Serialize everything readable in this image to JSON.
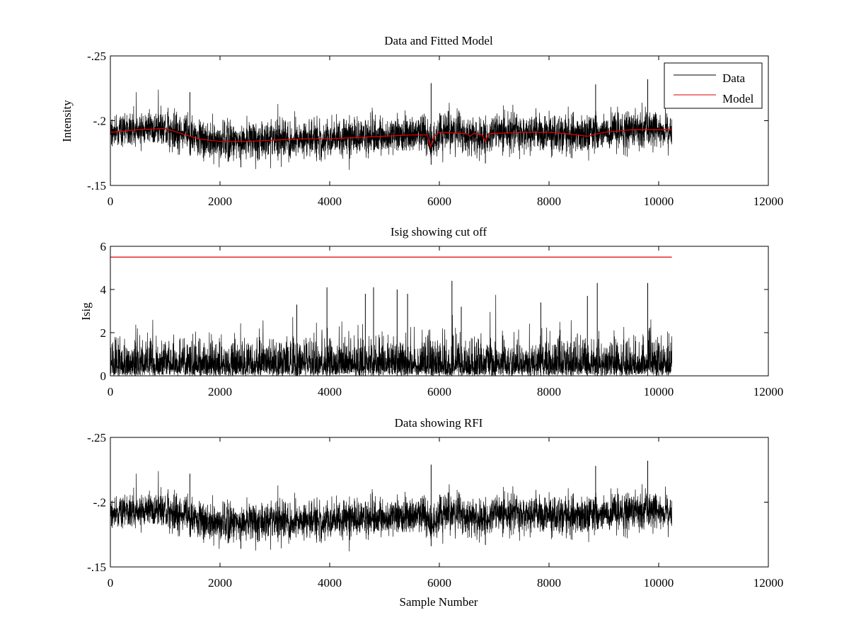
{
  "colors": {
    "data": "#000000",
    "model": "#e00000",
    "axes": "#000000",
    "background": "#ffffff"
  },
  "chart_data": [
    {
      "type": "line",
      "title": "Data and Fitted Model",
      "xlabel": "",
      "ylabel": "Intensity",
      "xlim": [
        0,
        12000
      ],
      "ylim": [
        -0.25,
        -0.15
      ],
      "y_reversed": true,
      "xticks": [
        0,
        2000,
        4000,
        6000,
        8000,
        10000,
        12000
      ],
      "yticks": [
        -0.15,
        -0.2,
        -0.25
      ],
      "grid": false,
      "legend": {
        "placement": "top-right",
        "entries": [
          "Data",
          "Model"
        ]
      },
      "series": [
        {
          "name": "Data",
          "kind": "noisy",
          "x_range": [
            0,
            10240
          ],
          "baseline": [
            [
              0,
              -0.191
            ],
            [
              500,
              -0.193
            ],
            [
              1000,
              -0.194
            ],
            [
              1300,
              -0.19
            ],
            [
              1600,
              -0.186
            ],
            [
              2000,
              -0.184
            ],
            [
              2500,
              -0.184
            ],
            [
              3000,
              -0.185
            ],
            [
              3500,
              -0.186
            ],
            [
              4000,
              -0.186
            ],
            [
              4500,
              -0.187
            ],
            [
              5000,
              -0.188
            ],
            [
              5500,
              -0.189
            ],
            [
              5800,
              -0.188
            ],
            [
              5850,
              -0.178
            ],
            [
              5950,
              -0.186
            ],
            [
              6000,
              -0.191
            ],
            [
              6500,
              -0.19
            ],
            [
              6800,
              -0.186
            ],
            [
              7000,
              -0.191
            ],
            [
              7500,
              -0.191
            ],
            [
              8000,
              -0.19
            ],
            [
              8500,
              -0.189
            ],
            [
              9000,
              -0.191
            ],
            [
              9500,
              -0.193
            ],
            [
              10240,
              -0.193
            ]
          ],
          "noise_sd": 0.008,
          "spikes": [
            [
              2380,
              -0.164
            ],
            [
              5850,
              -0.166
            ],
            [
              6840,
              -0.167
            ],
            [
              5850,
              -0.229
            ],
            [
              9800,
              -0.232
            ],
            [
              8850,
              -0.228
            ],
            [
              1450,
              -0.222
            ]
          ]
        },
        {
          "name": "Model",
          "kind": "line",
          "points": [
            [
              0,
              -0.191
            ],
            [
              500,
              -0.193
            ],
            [
              1000,
              -0.194
            ],
            [
              1300,
              -0.19
            ],
            [
              1600,
              -0.186
            ],
            [
              2000,
              -0.184
            ],
            [
              2500,
              -0.184
            ],
            [
              3000,
              -0.185
            ],
            [
              3500,
              -0.186
            ],
            [
              4000,
              -0.186
            ],
            [
              4500,
              -0.187
            ],
            [
              5000,
              -0.188
            ],
            [
              5500,
              -0.189
            ],
            [
              5780,
              -0.189
            ],
            [
              5840,
              -0.18
            ],
            [
              5900,
              -0.188
            ],
            [
              6000,
              -0.191
            ],
            [
              6500,
              -0.19
            ],
            [
              6560,
              -0.188
            ],
            [
              6620,
              -0.19
            ],
            [
              6780,
              -0.189
            ],
            [
              6840,
              -0.184
            ],
            [
              6900,
              -0.19
            ],
            [
              7500,
              -0.191
            ],
            [
              8000,
              -0.191
            ],
            [
              8300,
              -0.19
            ],
            [
              8700,
              -0.188
            ],
            [
              9000,
              -0.191
            ],
            [
              9500,
              -0.193
            ],
            [
              10240,
              -0.193
            ]
          ]
        }
      ]
    },
    {
      "type": "line",
      "title": "Isig showing cut off",
      "xlabel": "",
      "ylabel": "Isig",
      "xlim": [
        0,
        12000
      ],
      "ylim": [
        0,
        6
      ],
      "y_reversed": false,
      "xticks": [
        0,
        2000,
        4000,
        6000,
        8000,
        10000,
        12000
      ],
      "yticks": [
        0,
        2,
        4,
        6
      ],
      "grid": false,
      "series": [
        {
          "name": "",
          "kind": "abs-noise",
          "x_range": [
            0,
            10240
          ],
          "scale": 0.8,
          "spikes": [
            [
              8880,
              4.3
            ],
            [
              6230,
              4.4
            ],
            [
              9800,
              4.3
            ],
            [
              3950,
              4.1
            ],
            [
              4800,
              4.1
            ],
            [
              5230,
              4.0
            ],
            [
              4650,
              3.8
            ],
            [
              5420,
              3.8
            ],
            [
              3400,
              3.3
            ],
            [
              6400,
              3.2
            ],
            [
              7850,
              3.4
            ],
            [
              8700,
              3.7
            ]
          ]
        },
        {
          "name": "",
          "kind": "line",
          "points": [
            [
              0,
              5.5
            ],
            [
              10240,
              5.5
            ]
          ]
        }
      ]
    },
    {
      "type": "line",
      "title": "Data showing RFI",
      "xlabel": "Sample Number",
      "ylabel": "",
      "xlim": [
        0,
        12000
      ],
      "ylim": [
        -0.25,
        -0.15
      ],
      "y_reversed": true,
      "xticks": [
        0,
        2000,
        4000,
        6000,
        8000,
        10000,
        12000
      ],
      "yticks": [
        -0.15,
        -0.2,
        -0.25
      ],
      "grid": false,
      "series": [
        {
          "name": "",
          "kind": "noisy",
          "x_range": [
            0,
            10240
          ],
          "baseline": [
            [
              0,
              -0.191
            ],
            [
              500,
              -0.193
            ],
            [
              1000,
              -0.194
            ],
            [
              1300,
              -0.19
            ],
            [
              1600,
              -0.186
            ],
            [
              2000,
              -0.184
            ],
            [
              2500,
              -0.184
            ],
            [
              3000,
              -0.185
            ],
            [
              3500,
              -0.186
            ],
            [
              4000,
              -0.186
            ],
            [
              4500,
              -0.187
            ],
            [
              5000,
              -0.188
            ],
            [
              5500,
              -0.189
            ],
            [
              5800,
              -0.188
            ],
            [
              5850,
              -0.178
            ],
            [
              5950,
              -0.186
            ],
            [
              6000,
              -0.191
            ],
            [
              6500,
              -0.19
            ],
            [
              6800,
              -0.186
            ],
            [
              7000,
              -0.191
            ],
            [
              7500,
              -0.191
            ],
            [
              8000,
              -0.19
            ],
            [
              8500,
              -0.189
            ],
            [
              9000,
              -0.191
            ],
            [
              9500,
              -0.193
            ],
            [
              10240,
              -0.193
            ]
          ],
          "noise_sd": 0.008,
          "spikes": [
            [
              2380,
              -0.164
            ],
            [
              5850,
              -0.166
            ],
            [
              6840,
              -0.167
            ],
            [
              5850,
              -0.229
            ],
            [
              9800,
              -0.232
            ],
            [
              8850,
              -0.228
            ],
            [
              1450,
              -0.222
            ]
          ]
        }
      ]
    }
  ]
}
